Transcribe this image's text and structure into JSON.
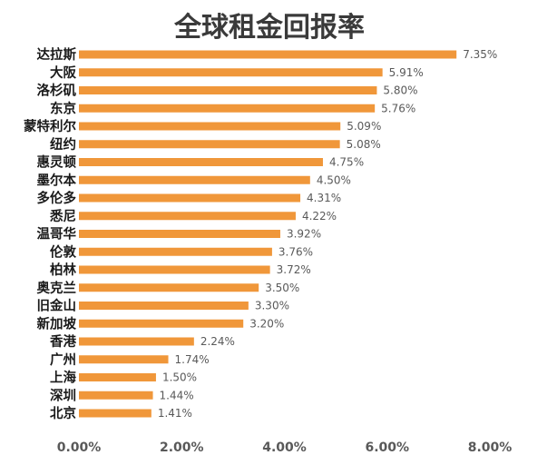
{
  "chart_data": {
    "type": "bar",
    "orientation": "horizontal",
    "title": "全球租金回报率",
    "categories": [
      "达拉斯",
      "大阪",
      "洛杉矶",
      "东京",
      "蒙特利尔",
      "纽约",
      "惠灵顿",
      "墨尔本",
      "多伦多",
      "悉尼",
      "温哥华",
      "伦敦",
      "柏林",
      "奥克兰",
      "旧金山",
      "新加坡",
      "香港",
      "广州",
      "上海",
      "深圳",
      "北京"
    ],
    "values": [
      7.35,
      5.91,
      5.8,
      5.76,
      5.09,
      5.08,
      4.75,
      4.5,
      4.31,
      4.22,
      3.92,
      3.76,
      3.72,
      3.5,
      3.3,
      3.2,
      2.24,
      1.74,
      1.5,
      1.44,
      1.41
    ],
    "data_labels": [
      "7.35%",
      "5.91%",
      "5.80%",
      "5.76%",
      "5.09%",
      "5.08%",
      "4.75%",
      "4.50%",
      "4.31%",
      "4.22%",
      "3.92%",
      "3.76%",
      "3.72%",
      "3.50%",
      "3.30%",
      "3.20%",
      "2.24%",
      "1.74%",
      "1.50%",
      "1.44%",
      "1.41%"
    ],
    "xticks": [
      "0.00%",
      "2.00%",
      "4.00%",
      "6.00%",
      "8.00%"
    ],
    "xlim": [
      0,
      8
    ],
    "bar_color": "#F0973A",
    "grid": false,
    "legend": "none"
  }
}
